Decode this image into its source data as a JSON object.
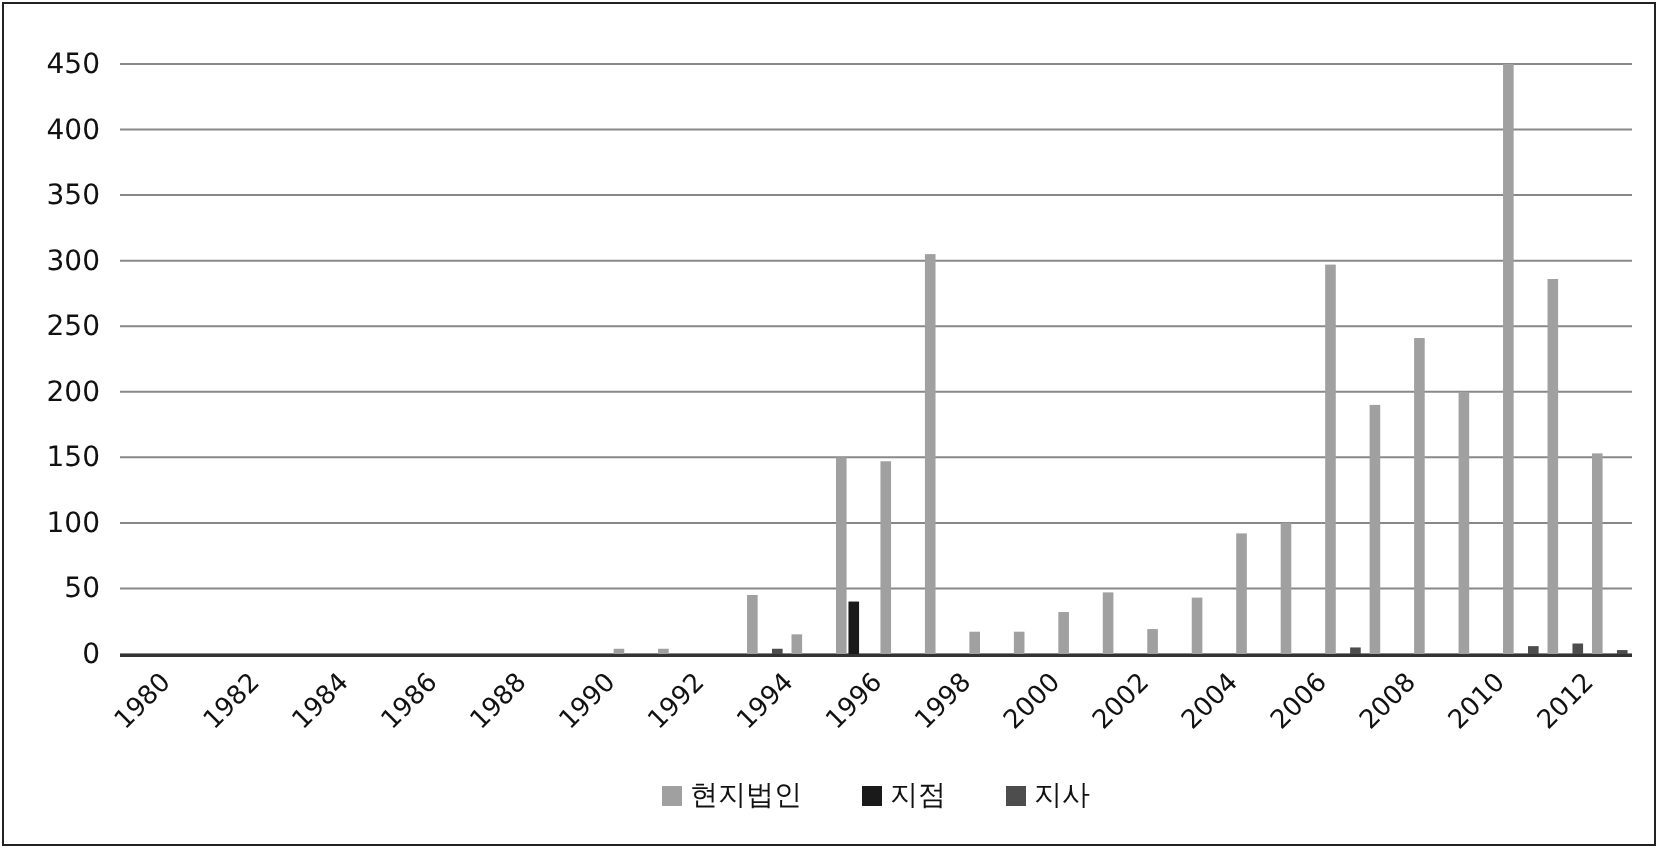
{
  "chart_data": {
    "type": "bar",
    "categories": [
      "1980",
      null,
      "1982",
      null,
      "1984",
      null,
      "1986",
      null,
      "1988",
      null,
      "1990",
      null,
      "1992",
      null,
      "1994",
      null,
      "1996",
      null,
      "1998",
      null,
      "2000",
      null,
      "2002",
      null,
      "2004",
      null,
      "2006",
      null,
      "2008",
      null,
      "2010",
      null,
      "2012",
      null
    ],
    "series": [
      {
        "name": "현지법인",
        "color": "#a0a0a0",
        "values": [
          0,
          0,
          0,
          0,
          0,
          0,
          0,
          0,
          0,
          0,
          0,
          4,
          4,
          0,
          45,
          15,
          150,
          147,
          305,
          17,
          17,
          32,
          47,
          19,
          43,
          92,
          100,
          297,
          190,
          241,
          200,
          450,
          286,
          153
        ]
      },
      {
        "name": "지점",
        "color": "#1a1a1a",
        "values": [
          0,
          0,
          0,
          0,
          0,
          0,
          0,
          0,
          0,
          0,
          0,
          0,
          0,
          0,
          0,
          0,
          40,
          0,
          0,
          0,
          0,
          0,
          0,
          0,
          0,
          0,
          0,
          0,
          0,
          0,
          0,
          0,
          0,
          0
        ]
      },
      {
        "name": "지사",
        "color": "#4d4d4d",
        "values": [
          0,
          0,
          0,
          0,
          0,
          0,
          0,
          0,
          0,
          0,
          0,
          0,
          0,
          0,
          4,
          0,
          0,
          0,
          0,
          0,
          0,
          0,
          0,
          0,
          0,
          0,
          0,
          5,
          0,
          0,
          0,
          6,
          8,
          3
        ]
      }
    ],
    "ylim": [
      0,
      450
    ],
    "yticks": [
      0,
      50,
      100,
      150,
      200,
      250,
      300,
      350,
      400,
      450
    ],
    "grid": "y",
    "legend": "bottom"
  }
}
